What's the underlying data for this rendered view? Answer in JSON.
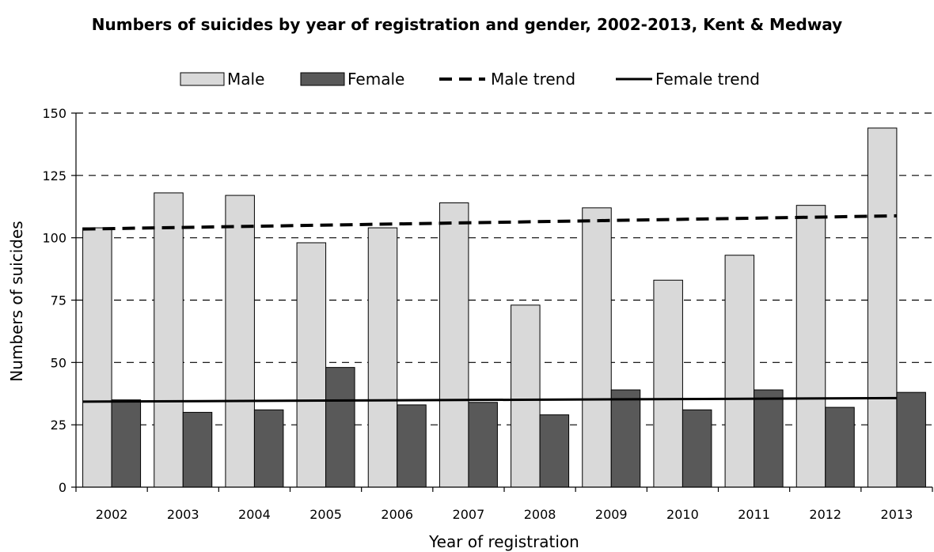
{
  "chart_data": {
    "type": "bar",
    "title": "Numbers of suicides by year of registration and gender, 2002-2013, Kent & Medway",
    "xlabel": "Year of registration",
    "ylabel": "Numbers of suicides",
    "ylim": [
      0,
      150
    ],
    "yticks": [
      0,
      25,
      50,
      75,
      100,
      125,
      150
    ],
    "grid": "horizontal dashed",
    "legend_position": "top",
    "categories": [
      "2002",
      "2003",
      "2004",
      "2005",
      "2006",
      "2007",
      "2008",
      "2009",
      "2010",
      "2011",
      "2012",
      "2013"
    ],
    "series": [
      {
        "name": "Male",
        "kind": "bar",
        "color": "#d9d9d9",
        "values": [
          104,
          118,
          117,
          98,
          104,
          114,
          73,
          112,
          83,
          93,
          113,
          144
        ]
      },
      {
        "name": "Female",
        "kind": "bar",
        "color": "#595959",
        "values": [
          35,
          30,
          31,
          48,
          33,
          34,
          29,
          39,
          31,
          39,
          32,
          38
        ]
      }
    ],
    "trends": [
      {
        "name": "Male trend",
        "style": "dashed",
        "color": "#000000",
        "start": 103.5,
        "end": 108.8
      },
      {
        "name": "Female trend",
        "style": "solid",
        "color": "#000000",
        "start": 34.3,
        "end": 35.7
      }
    ]
  }
}
